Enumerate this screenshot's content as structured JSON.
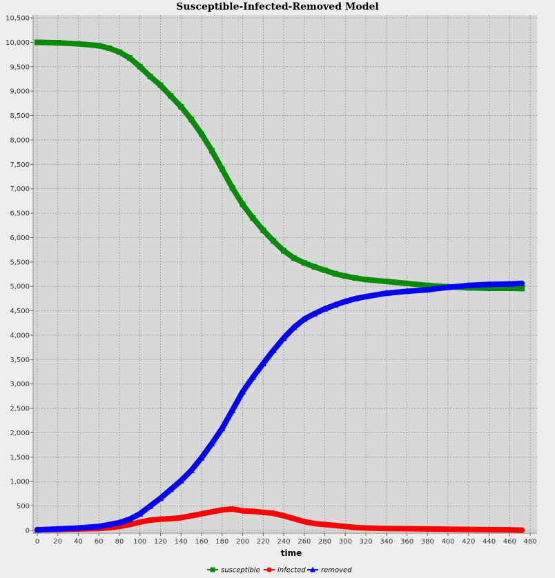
{
  "chart_data": {
    "type": "line",
    "title": "Susceptible-Infected-Removed Model",
    "xlabel": "time",
    "ylabel": "",
    "xlim": [
      0,
      484
    ],
    "ylim": [
      0,
      10500
    ],
    "x_ticks": [
      0,
      20,
      40,
      60,
      80,
      100,
      120,
      140,
      160,
      180,
      200,
      220,
      240,
      260,
      280,
      300,
      320,
      340,
      360,
      380,
      400,
      420,
      440,
      460,
      480
    ],
    "y_ticks": [
      0,
      500,
      1000,
      1500,
      2000,
      2500,
      3000,
      3500,
      4000,
      4500,
      5000,
      5500,
      6000,
      6500,
      7000,
      7500,
      8000,
      8500,
      9000,
      9500,
      10000,
      10500
    ],
    "x_tick_labels": [
      "0",
      "20",
      "40",
      "60",
      "80",
      "100",
      "120",
      "140",
      "160",
      "180",
      "200",
      "220",
      "240",
      "260",
      "280",
      "300",
      "320",
      "340",
      "360",
      "380",
      "400",
      "420",
      "440",
      "460",
      "480"
    ],
    "y_tick_labels": [
      "0",
      "500",
      "1,000",
      "1,500",
      "2,000",
      "2,500",
      "3,000",
      "3,500",
      "4,000",
      "4,500",
      "5,000",
      "5,500",
      "6,000",
      "6,500",
      "7,000",
      "7,500",
      "8,000",
      "8,500",
      "9,000",
      "9,500",
      "10,000",
      "10,500"
    ],
    "grid": true,
    "legend_position": "bottom-center",
    "x": [
      0,
      20,
      40,
      60,
      70,
      80,
      90,
      100,
      110,
      120,
      130,
      140,
      150,
      160,
      170,
      180,
      190,
      200,
      210,
      220,
      230,
      240,
      250,
      260,
      270,
      280,
      290,
      300,
      310,
      320,
      340,
      360,
      380,
      400,
      420,
      440,
      460,
      472
    ],
    "series": [
      {
        "name": "susceptible",
        "color": "#0a8a0a",
        "marker": "square",
        "values": [
          10000,
          9990,
          9970,
          9930,
          9880,
          9800,
          9680,
          9500,
          9300,
          9120,
          8900,
          8680,
          8420,
          8120,
          7780,
          7400,
          7020,
          6680,
          6400,
          6150,
          5930,
          5730,
          5580,
          5480,
          5400,
          5330,
          5260,
          5210,
          5170,
          5140,
          5100,
          5060,
          5020,
          4990,
          4970,
          4960,
          4960,
          4955
        ]
      },
      {
        "name": "infected",
        "color": "#ff0000",
        "marker": "circle",
        "values": [
          15,
          20,
          30,
          40,
          55,
          80,
          120,
          170,
          210,
          230,
          240,
          260,
          300,
          340,
          380,
          420,
          440,
          400,
          390,
          370,
          350,
          300,
          240,
          180,
          140,
          120,
          100,
          80,
          60,
          50,
          40,
          35,
          30,
          25,
          20,
          15,
          10,
          5
        ]
      },
      {
        "name": "removed",
        "color": "#0000ff",
        "marker": "triangle",
        "values": [
          10,
          30,
          50,
          80,
          120,
          160,
          230,
          340,
          500,
          660,
          840,
          1020,
          1230,
          1490,
          1780,
          2090,
          2460,
          2840,
          3140,
          3420,
          3690,
          3940,
          4160,
          4330,
          4440,
          4540,
          4620,
          4690,
          4750,
          4790,
          4860,
          4900,
          4930,
          4980,
          5020,
          5040,
          5050,
          5060
        ]
      }
    ]
  }
}
